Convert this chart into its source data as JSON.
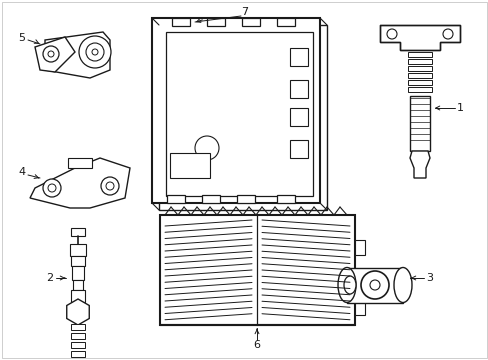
{
  "background_color": "#ffffff",
  "line_color": "#1a1a1a",
  "fig_width": 4.89,
  "fig_height": 3.6,
  "dpi": 100,
  "border_color": "#cccccc"
}
